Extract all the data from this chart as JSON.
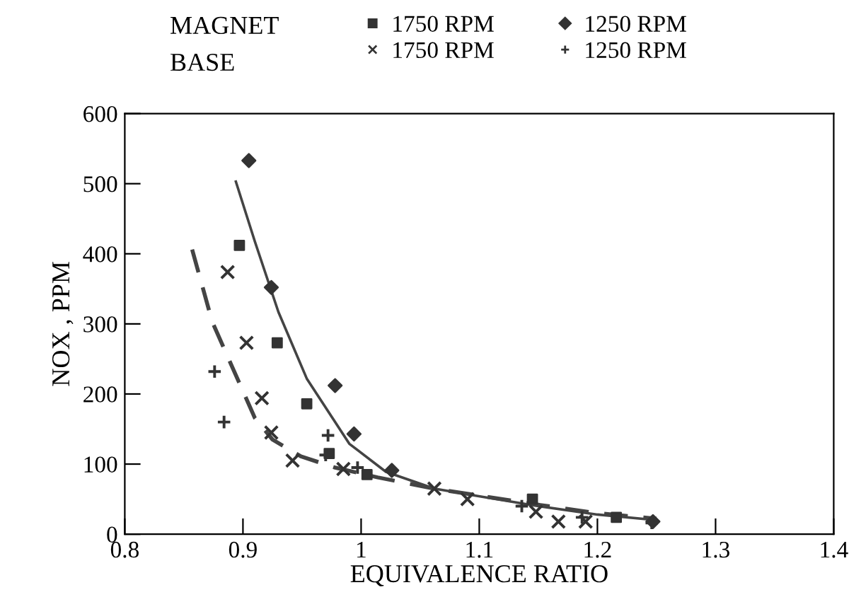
{
  "chart_data": {
    "type": "scatter",
    "xlabel": "EQUIVALENCE RATIO",
    "ylabel": "NOX , PPM",
    "xlim": [
      0.8,
      1.4
    ],
    "xticks": [
      0.8,
      0.9,
      1,
      1.1,
      1.2,
      1.3,
      1.4
    ],
    "ylim": [
      0,
      600
    ],
    "yticks": [
      0,
      100,
      200,
      300,
      400,
      500,
      600
    ],
    "grid": false,
    "legend": "top",
    "annotations": [
      "MAGNET",
      "BASE"
    ],
    "series": [
      {
        "name": "1750 RPM",
        "color": "#333333",
        "marker": "square",
        "x": [
          0.897,
          0.929,
          0.954,
          0.973,
          1.005,
          1.145,
          1.216
        ],
        "values": [
          412,
          273,
          186,
          115,
          85,
          50,
          24
        ]
      },
      {
        "name": "1250 RPM",
        "color": "#333333",
        "marker": "diamond",
        "x": [
          0.905,
          0.924,
          0.978,
          0.994,
          1.026,
          1.247
        ],
        "values": [
          533,
          352,
          212,
          143,
          91,
          18
        ]
      },
      {
        "name": "1750 RPM",
        "color": "#333333",
        "marker": "cross",
        "x": [
          0.887,
          0.903,
          0.916,
          0.924,
          0.942,
          0.985,
          1.062,
          1.09,
          1.148,
          1.167,
          1.19
        ],
        "values": [
          374,
          273,
          194,
          145,
          105,
          93,
          65,
          50,
          32,
          18,
          18
        ]
      },
      {
        "name": "1250 RPM",
        "color": "#333333",
        "marker": "plus",
        "x": [
          0.876,
          0.884,
          0.972,
          0.97,
          0.997,
          1.136,
          1.187,
          1.246
        ],
        "values": [
          232,
          160,
          141,
          113,
          95,
          40,
          24,
          16
        ]
      },
      {
        "type": "line",
        "color": "#444444",
        "line_style": "solid",
        "x": [
          0.894,
          0.91,
          0.93,
          0.954,
          0.99,
          1.021,
          1.062,
          1.097,
          1.15,
          1.2,
          1.25
        ],
        "values": [
          503,
          418,
          317,
          222,
          129,
          89,
          65,
          55,
          40,
          28,
          20
        ]
      },
      {
        "type": "line",
        "color": "#444444",
        "line_style": "dashed",
        "x": [
          0.857,
          0.874,
          0.89,
          0.91,
          0.925,
          0.949,
          0.978,
          1.014,
          1.062,
          1.1,
          1.15,
          1.2,
          1.25
        ],
        "values": [
          406,
          303,
          242,
          166,
          135,
          111,
          95,
          81,
          65,
          55,
          42,
          30,
          22
        ]
      }
    ]
  }
}
